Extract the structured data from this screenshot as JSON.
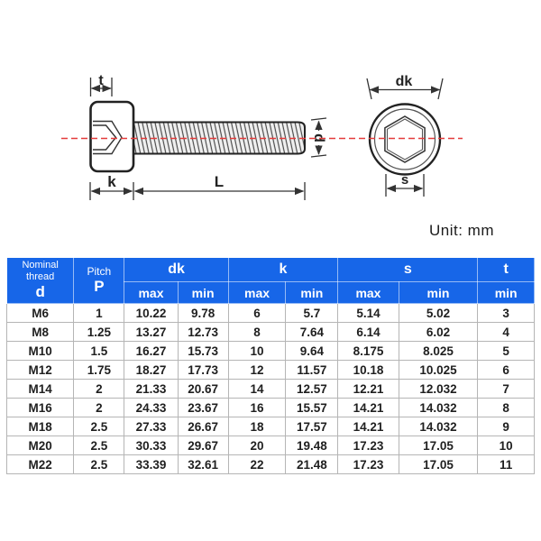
{
  "unit_label": "Unit:  mm",
  "colors": {
    "header_blue": "#1766e8",
    "centerline_red": "#e43b3b",
    "line_dark": "#2b2b2b"
  },
  "diagram": {
    "labels": {
      "socket_depth": "t",
      "head_height": "k",
      "length": "L",
      "diameter": "d",
      "head_diameter": "dk",
      "socket_width": "s"
    }
  },
  "table": {
    "header": {
      "col1_top": "Nominal thread",
      "col1_bottom": "d",
      "col2_top": "Pitch",
      "col2_bottom": "P",
      "groups": [
        {
          "label": "dk",
          "sub": [
            "max",
            "min"
          ]
        },
        {
          "label": "k",
          "sub": [
            "max",
            "min"
          ]
        },
        {
          "label": "s",
          "sub": [
            "max",
            "min"
          ]
        }
      ],
      "last_top": "t",
      "last_bottom": "min"
    },
    "rows": [
      [
        "M6",
        "1",
        "10.22",
        "9.78",
        "6",
        "5.7",
        "5.14",
        "5.02",
        "3"
      ],
      [
        "M8",
        "1.25",
        "13.27",
        "12.73",
        "8",
        "7.64",
        "6.14",
        "6.02",
        "4"
      ],
      [
        "M10",
        "1.5",
        "16.27",
        "15.73",
        "10",
        "9.64",
        "8.175",
        "8.025",
        "5"
      ],
      [
        "M12",
        "1.75",
        "18.27",
        "17.73",
        "12",
        "11.57",
        "10.18",
        "10.025",
        "6"
      ],
      [
        "M14",
        "2",
        "21.33",
        "20.67",
        "14",
        "12.57",
        "12.21",
        "12.032",
        "7"
      ],
      [
        "M16",
        "2",
        "24.33",
        "23.67",
        "16",
        "15.57",
        "14.21",
        "14.032",
        "8"
      ],
      [
        "M18",
        "2.5",
        "27.33",
        "26.67",
        "18",
        "17.57",
        "14.21",
        "14.032",
        "9"
      ],
      [
        "M20",
        "2.5",
        "30.33",
        "29.67",
        "20",
        "19.48",
        "17.23",
        "17.05",
        "10"
      ],
      [
        "M22",
        "2.5",
        "33.39",
        "32.61",
        "22",
        "21.48",
        "17.23",
        "17.05",
        "11"
      ]
    ]
  }
}
